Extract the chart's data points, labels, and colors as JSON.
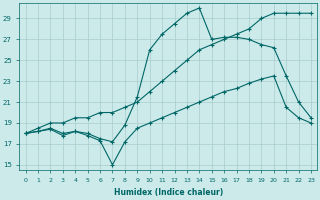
{
  "xlabel": "Humidex (Indice chaleur)",
  "bg_color": "#cceaea",
  "grid_color": "#aacccc",
  "line_color": "#006666",
  "xlim_min": -0.5,
  "xlim_max": 23.5,
  "ylim_min": 14.5,
  "ylim_max": 30.5,
  "yticks": [
    15,
    17,
    19,
    21,
    23,
    25,
    27,
    29
  ],
  "xticks": [
    0,
    1,
    2,
    3,
    4,
    5,
    6,
    7,
    8,
    9,
    10,
    11,
    12,
    13,
    14,
    15,
    16,
    17,
    18,
    19,
    20,
    21,
    22,
    23
  ],
  "line1_x": [
    0,
    1,
    2,
    3,
    4,
    5,
    6,
    7,
    8,
    9,
    10,
    11,
    12,
    13,
    14,
    15,
    16,
    17,
    18,
    19,
    20,
    21,
    22,
    23
  ],
  "line1_y": [
    18.0,
    18.2,
    18.4,
    17.8,
    18.2,
    17.8,
    17.3,
    15.0,
    17.2,
    18.5,
    19.0,
    19.5,
    20.0,
    20.5,
    21.0,
    21.5,
    22.0,
    22.3,
    22.8,
    23.2,
    23.5,
    20.5,
    19.5,
    19.0
  ],
  "line2_x": [
    0,
    1,
    2,
    3,
    4,
    5,
    6,
    7,
    8,
    9,
    10,
    11,
    12,
    13,
    14,
    15,
    16,
    17,
    18,
    19,
    20,
    21,
    22,
    23
  ],
  "line2_y": [
    18.0,
    18.2,
    18.5,
    18.0,
    18.2,
    18.0,
    17.5,
    17.2,
    18.8,
    21.5,
    26.0,
    27.5,
    28.5,
    29.5,
    30.0,
    27.0,
    27.2,
    27.2,
    27.0,
    26.5,
    26.2,
    23.5,
    21.0,
    19.5
  ],
  "line3_x": [
    0,
    1,
    2,
    3,
    4,
    5,
    6,
    7,
    8,
    9,
    10,
    11,
    12,
    13,
    14,
    15,
    16,
    17,
    18,
    19,
    20,
    21,
    22,
    23
  ],
  "line3_y": [
    18.0,
    18.5,
    19.0,
    19.0,
    19.5,
    19.5,
    20.0,
    20.0,
    20.5,
    21.0,
    22.0,
    23.0,
    24.0,
    25.0,
    26.0,
    26.5,
    27.0,
    27.5,
    28.0,
    29.0,
    29.5,
    29.5,
    29.5,
    29.5
  ]
}
